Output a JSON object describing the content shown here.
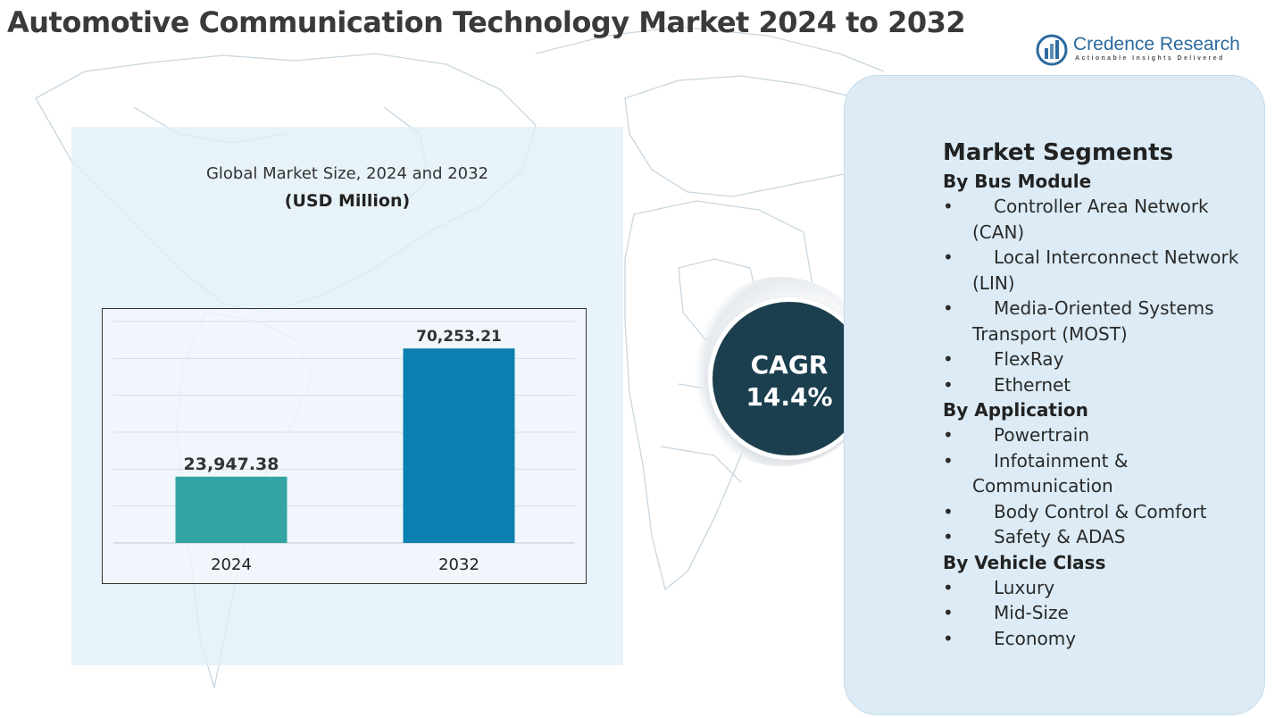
{
  "header": {
    "title": "Automotive Communication Technology Market 2024 to 2032"
  },
  "logo": {
    "name": "Credence Research",
    "tagline": "Actionable Insights Delivered",
    "icon": "bar-chart-circle-icon"
  },
  "chart": {
    "subtitle": "Global Market Size, 2024 and 2032",
    "unit": "(USD Million)"
  },
  "chart_data": {
    "type": "bar",
    "categories": [
      "2024",
      "2032"
    ],
    "values": [
      23947.38,
      70253.21
    ],
    "value_labels": [
      "23,947.38",
      "70,253.21"
    ],
    "colors": [
      "#33a3a3",
      "#0a7fb0"
    ],
    "ylim": [
      0,
      80000
    ],
    "grid": true,
    "legend": "none"
  },
  "cagr": {
    "label": "CAGR",
    "value": "14.4%"
  },
  "segments": {
    "title": "Market Segments",
    "groups": [
      {
        "name": "By Bus Module",
        "items": [
          "Controller Area Network (CAN)",
          "Local Interconnect Network (LIN)",
          "Media-Oriented Systems Transport (MOST)",
          "FlexRay",
          "Ethernet"
        ]
      },
      {
        "name": "By Application",
        "items": [
          "Powertrain",
          "Infotainment & Communication",
          "Body Control & Comfort",
          "Safety & ADAS"
        ]
      },
      {
        "name": "By Vehicle Class",
        "items": [
          "Luxury",
          "Mid-Size",
          "Economy"
        ]
      }
    ]
  },
  "colors": {
    "panel_bg": "#e1eef7",
    "segments_bg": "#dcebf5",
    "cagr_bg": "#1b3f4e",
    "title_text": "#3a3a3a",
    "brand": "#2b6a9e"
  }
}
